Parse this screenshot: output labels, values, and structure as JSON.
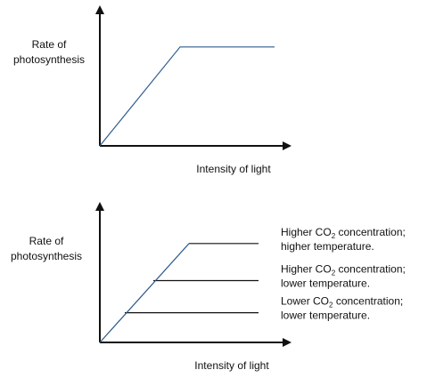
{
  "chart_data": [
    {
      "type": "line",
      "title": "",
      "xlabel": "Intensity of light",
      "ylabel": [
        "Rate of",
        "photosynthesis"
      ],
      "grid": false,
      "legend": "none",
      "axis_ticks": "none",
      "series": [
        {
          "name": "",
          "color": "#2e5b8c",
          "points": [
            [
              0,
              0
            ],
            [
              0.45,
              0.8
            ],
            [
              0.98,
              0.8
            ]
          ]
        }
      ]
    },
    {
      "type": "line",
      "title": "",
      "xlabel": "Intensity of light",
      "ylabel": [
        "Rate of",
        "photosynthesis"
      ],
      "grid": false,
      "legend": "right (labels at line ends)",
      "axis_ticks": "none",
      "series": [
        {
          "name": "Higher CO₂ concentration; higher temperature.",
          "label_lines": [
            [
              "Higher CO",
              "2",
              " concentration;"
            ],
            [
              "higher temperature."
            ]
          ],
          "line_color": "#111111",
          "points": [
            [
              0.5,
              0.8
            ],
            [
              0.89,
              0.8
            ]
          ]
        },
        {
          "name": "Higher CO₂ concentration; lower temperature.",
          "label_lines": [
            [
              "Higher CO",
              "2",
              " concentration;"
            ],
            [
              "lower temperature."
            ]
          ],
          "line_color": "#111111",
          "points": [
            [
              0.3,
              0.5
            ],
            [
              0.89,
              0.5
            ]
          ]
        },
        {
          "name": "Lower CO₂ concentration; lower temperature.",
          "label_lines": [
            [
              "Lower CO",
              "2",
              " concentration;"
            ],
            [
              "lower temperature."
            ]
          ],
          "line_color": "#111111",
          "points": [
            [
              0.14,
              0.24
            ],
            [
              0.89,
              0.24
            ]
          ]
        }
      ],
      "limiting_line": {
        "color": "#2e5b8c",
        "points": [
          [
            0,
            0
          ],
          [
            0.5,
            0.8
          ]
        ]
      }
    }
  ]
}
